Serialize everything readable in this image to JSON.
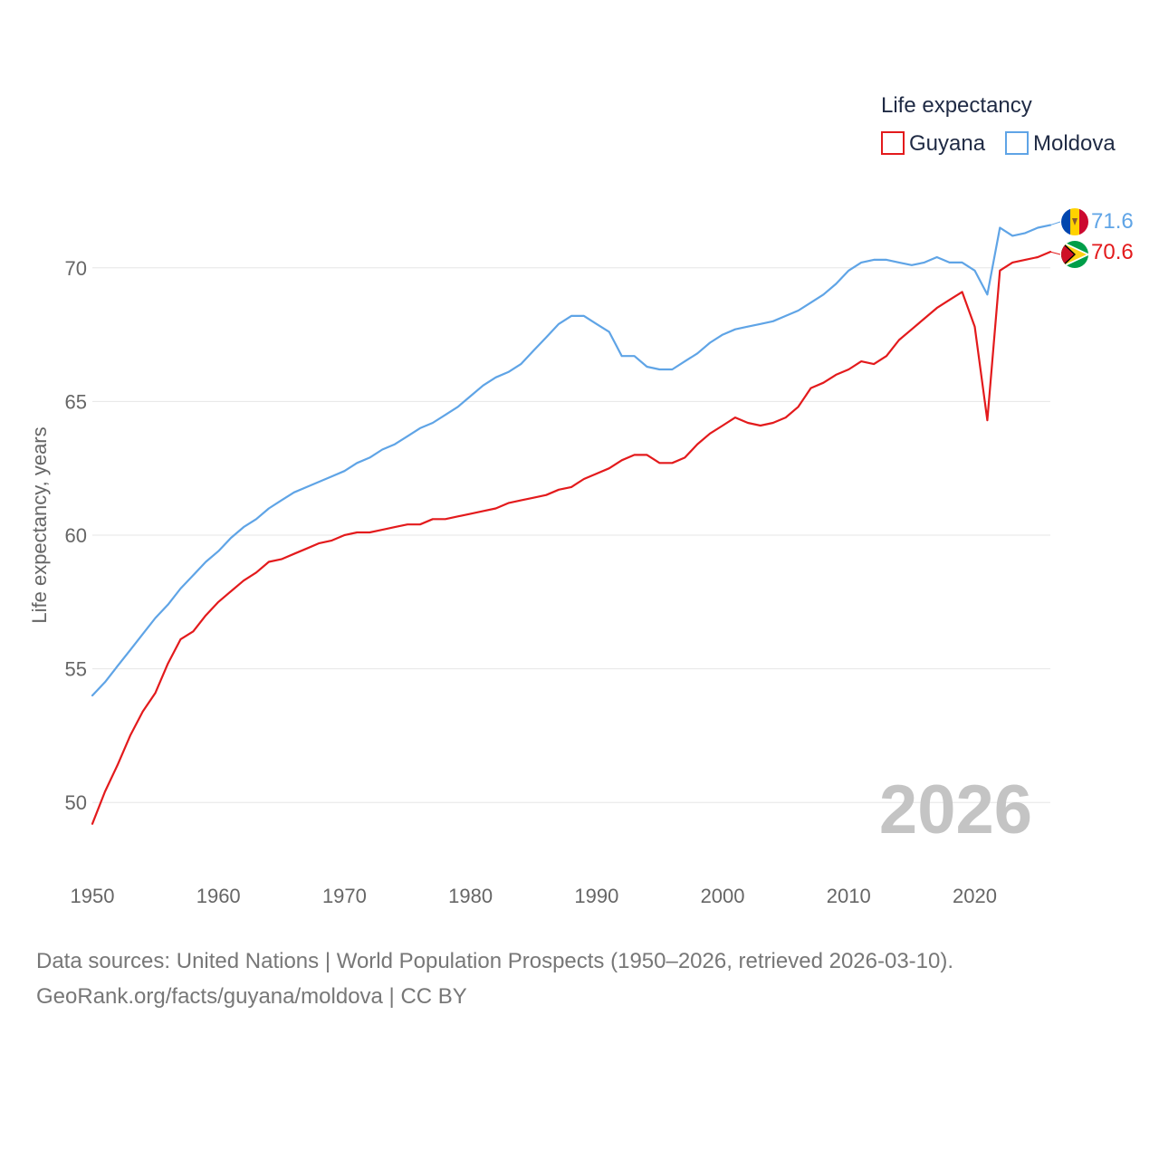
{
  "chart_data": {
    "type": "line",
    "title": "",
    "xlabel": "",
    "ylabel": "Life expectancy, years",
    "xlim": [
      1950,
      2026
    ],
    "ylim": [
      47.5,
      72.5
    ],
    "x_ticks": [
      1950,
      1960,
      1970,
      1980,
      1990,
      2000,
      2010,
      2020
    ],
    "y_ticks": [
      50,
      55,
      60,
      65,
      70
    ],
    "grid": true,
    "legend": {
      "title": "Life expectancy",
      "position": "top-right"
    },
    "year_label": "2026",
    "x": [
      1950,
      1951,
      1952,
      1953,
      1954,
      1955,
      1956,
      1957,
      1958,
      1959,
      1960,
      1961,
      1962,
      1963,
      1964,
      1965,
      1966,
      1967,
      1968,
      1969,
      1970,
      1971,
      1972,
      1973,
      1974,
      1975,
      1976,
      1977,
      1978,
      1979,
      1980,
      1981,
      1982,
      1983,
      1984,
      1985,
      1986,
      1987,
      1988,
      1989,
      1990,
      1991,
      1992,
      1993,
      1994,
      1995,
      1996,
      1997,
      1998,
      1999,
      2000,
      2001,
      2002,
      2003,
      2004,
      2005,
      2006,
      2007,
      2008,
      2009,
      2010,
      2011,
      2012,
      2013,
      2014,
      2015,
      2016,
      2017,
      2018,
      2019,
      2020,
      2021,
      2022,
      2023,
      2024,
      2025,
      2026
    ],
    "series": [
      {
        "name": "Guyana",
        "color": "#e31a1c",
        "end_label": "70.6",
        "flag": "guyana",
        "values": [
          49.2,
          50.4,
          51.4,
          52.5,
          53.4,
          54.1,
          55.2,
          56.1,
          56.4,
          57.0,
          57.5,
          57.9,
          58.3,
          58.6,
          59.0,
          59.1,
          59.3,
          59.5,
          59.7,
          59.8,
          60.0,
          60.1,
          60.1,
          60.2,
          60.3,
          60.4,
          60.4,
          60.6,
          60.6,
          60.7,
          60.8,
          60.9,
          61.0,
          61.2,
          61.3,
          61.4,
          61.5,
          61.7,
          61.8,
          62.1,
          62.3,
          62.5,
          62.8,
          63.0,
          63.0,
          62.7,
          62.7,
          62.9,
          63.4,
          63.8,
          64.1,
          64.4,
          64.2,
          64.1,
          64.2,
          64.4,
          64.8,
          65.5,
          65.7,
          66.0,
          66.2,
          66.5,
          66.4,
          66.7,
          67.3,
          67.7,
          68.1,
          68.5,
          68.8,
          69.1,
          67.8,
          64.3,
          69.9,
          70.2,
          70.3,
          70.4,
          70.6
        ]
      },
      {
        "name": "Moldova",
        "color": "#5fa4e6",
        "end_label": "71.6",
        "flag": "moldova",
        "values": [
          54.0,
          54.5,
          55.1,
          55.7,
          56.3,
          56.9,
          57.4,
          58.0,
          58.5,
          59.0,
          59.4,
          59.9,
          60.3,
          60.6,
          61.0,
          61.3,
          61.6,
          61.8,
          62.0,
          62.2,
          62.4,
          62.7,
          62.9,
          63.2,
          63.4,
          63.7,
          64.0,
          64.2,
          64.5,
          64.8,
          65.2,
          65.6,
          65.9,
          66.1,
          66.4,
          66.9,
          67.4,
          67.9,
          68.2,
          68.2,
          67.9,
          67.6,
          66.7,
          66.7,
          66.3,
          66.2,
          66.2,
          66.5,
          66.8,
          67.2,
          67.5,
          67.7,
          67.8,
          67.9,
          68.0,
          68.2,
          68.4,
          68.7,
          69.0,
          69.4,
          69.9,
          70.2,
          70.3,
          70.3,
          70.2,
          70.1,
          70.2,
          70.4,
          70.2,
          70.2,
          69.9,
          69.0,
          71.5,
          71.2,
          71.3,
          71.5,
          71.6
        ]
      }
    ]
  },
  "source": {
    "line1": "Data sources: United Nations | World Population Prospects (1950–2026, retrieved 2026-03-10).",
    "line2": "GeoRank.org/facts/guyana/moldova | CC BY"
  }
}
